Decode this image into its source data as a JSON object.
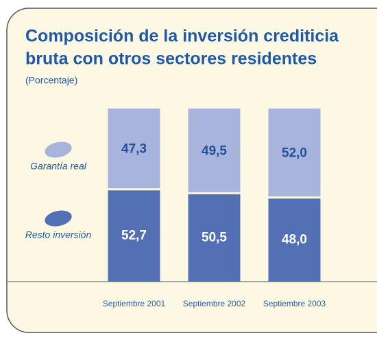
{
  "chart_data": {
    "type": "stacked_bar",
    "title": "Composición de la inversión crediticia",
    "title_line2": "bruta con otros sectores residentes",
    "subtitle": "(Porcentaje)",
    "categories": [
      "Septiembre 2001",
      "Septiembre 2002",
      "Septiembre 2003"
    ],
    "ylim": [
      0,
      100
    ],
    "series": [
      {
        "name": "Resto inversión",
        "color": "#5470b4",
        "values": [
          52.7,
          50.5,
          48.0
        ],
        "value_labels": [
          "52,7",
          "50,5",
          "48,0"
        ]
      },
      {
        "name": "Garantía real",
        "color": "#a9b4dc",
        "values": [
          47.3,
          49.5,
          52.0
        ],
        "value_labels": [
          "47,3",
          "49,5",
          "52,0"
        ]
      }
    ]
  }
}
